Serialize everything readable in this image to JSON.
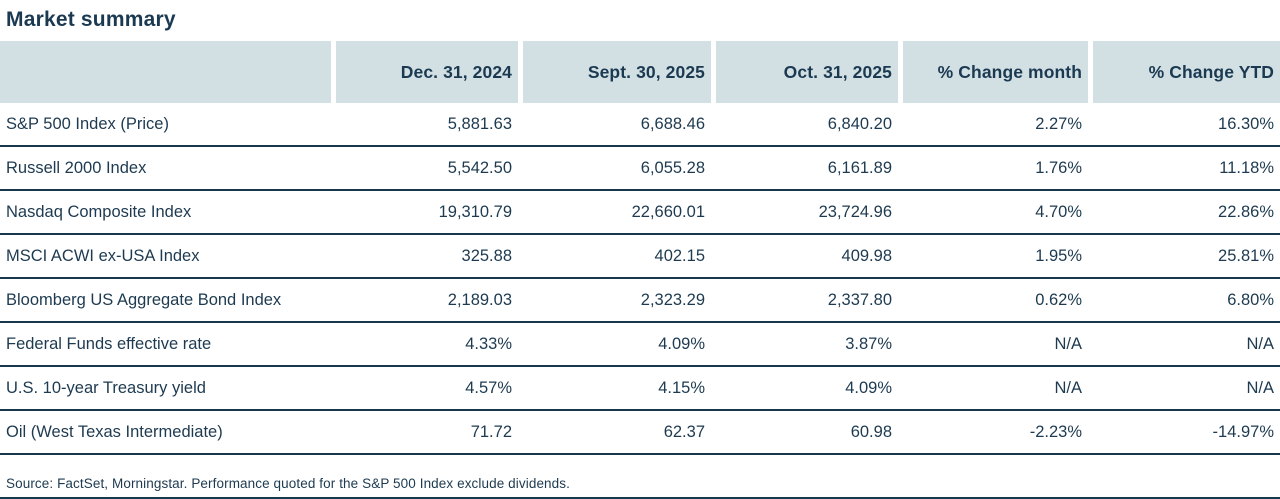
{
  "title": "Market summary",
  "colors": {
    "text_navy": "#1b3a52",
    "line_navy": "#17374c",
    "header_background": "#d3e0e3"
  },
  "table": {
    "columns": [
      "",
      "Dec. 31, 2024",
      "Sept. 30, 2025",
      "Oct. 31, 2025",
      "% Change month",
      "% Change YTD"
    ],
    "rows": [
      {
        "label": "S&P 500 Index (Price)",
        "values": [
          "5,881.63",
          "6,688.46",
          "6,840.20",
          "2.27%",
          "16.30%"
        ]
      },
      {
        "label": "Russell 2000 Index",
        "values": [
          "5,542.50",
          "6,055.28",
          "6,161.89",
          "1.76%",
          "11.18%"
        ]
      },
      {
        "label": "Nasdaq Composite Index",
        "values": [
          "19,310.79",
          "22,660.01",
          "23,724.96",
          "4.70%",
          "22.86%"
        ]
      },
      {
        "label": "MSCI ACWI ex-USA Index",
        "values": [
          "325.88",
          "402.15",
          "409.98",
          "1.95%",
          "25.81%"
        ]
      },
      {
        "label": "Bloomberg US Aggregate Bond Index",
        "values": [
          "2,189.03",
          "2,323.29",
          "2,337.80",
          "0.62%",
          "6.80%"
        ]
      },
      {
        "label": "Federal Funds effective rate",
        "values": [
          "4.33%",
          "4.09%",
          "3.87%",
          "N/A",
          "N/A"
        ]
      },
      {
        "label": "U.S. 10-year Treasury yield",
        "values": [
          "4.57%",
          "4.15%",
          "4.09%",
          "N/A",
          "N/A"
        ]
      },
      {
        "label": "Oil (West Texas Intermediate)",
        "values": [
          "71.72",
          "62.37",
          "60.98",
          "-2.23%",
          "-14.97%"
        ]
      }
    ]
  },
  "footnote": "Source: FactSet, Morningstar. Performance quoted for the S&P 500 Index exclude dividends."
}
